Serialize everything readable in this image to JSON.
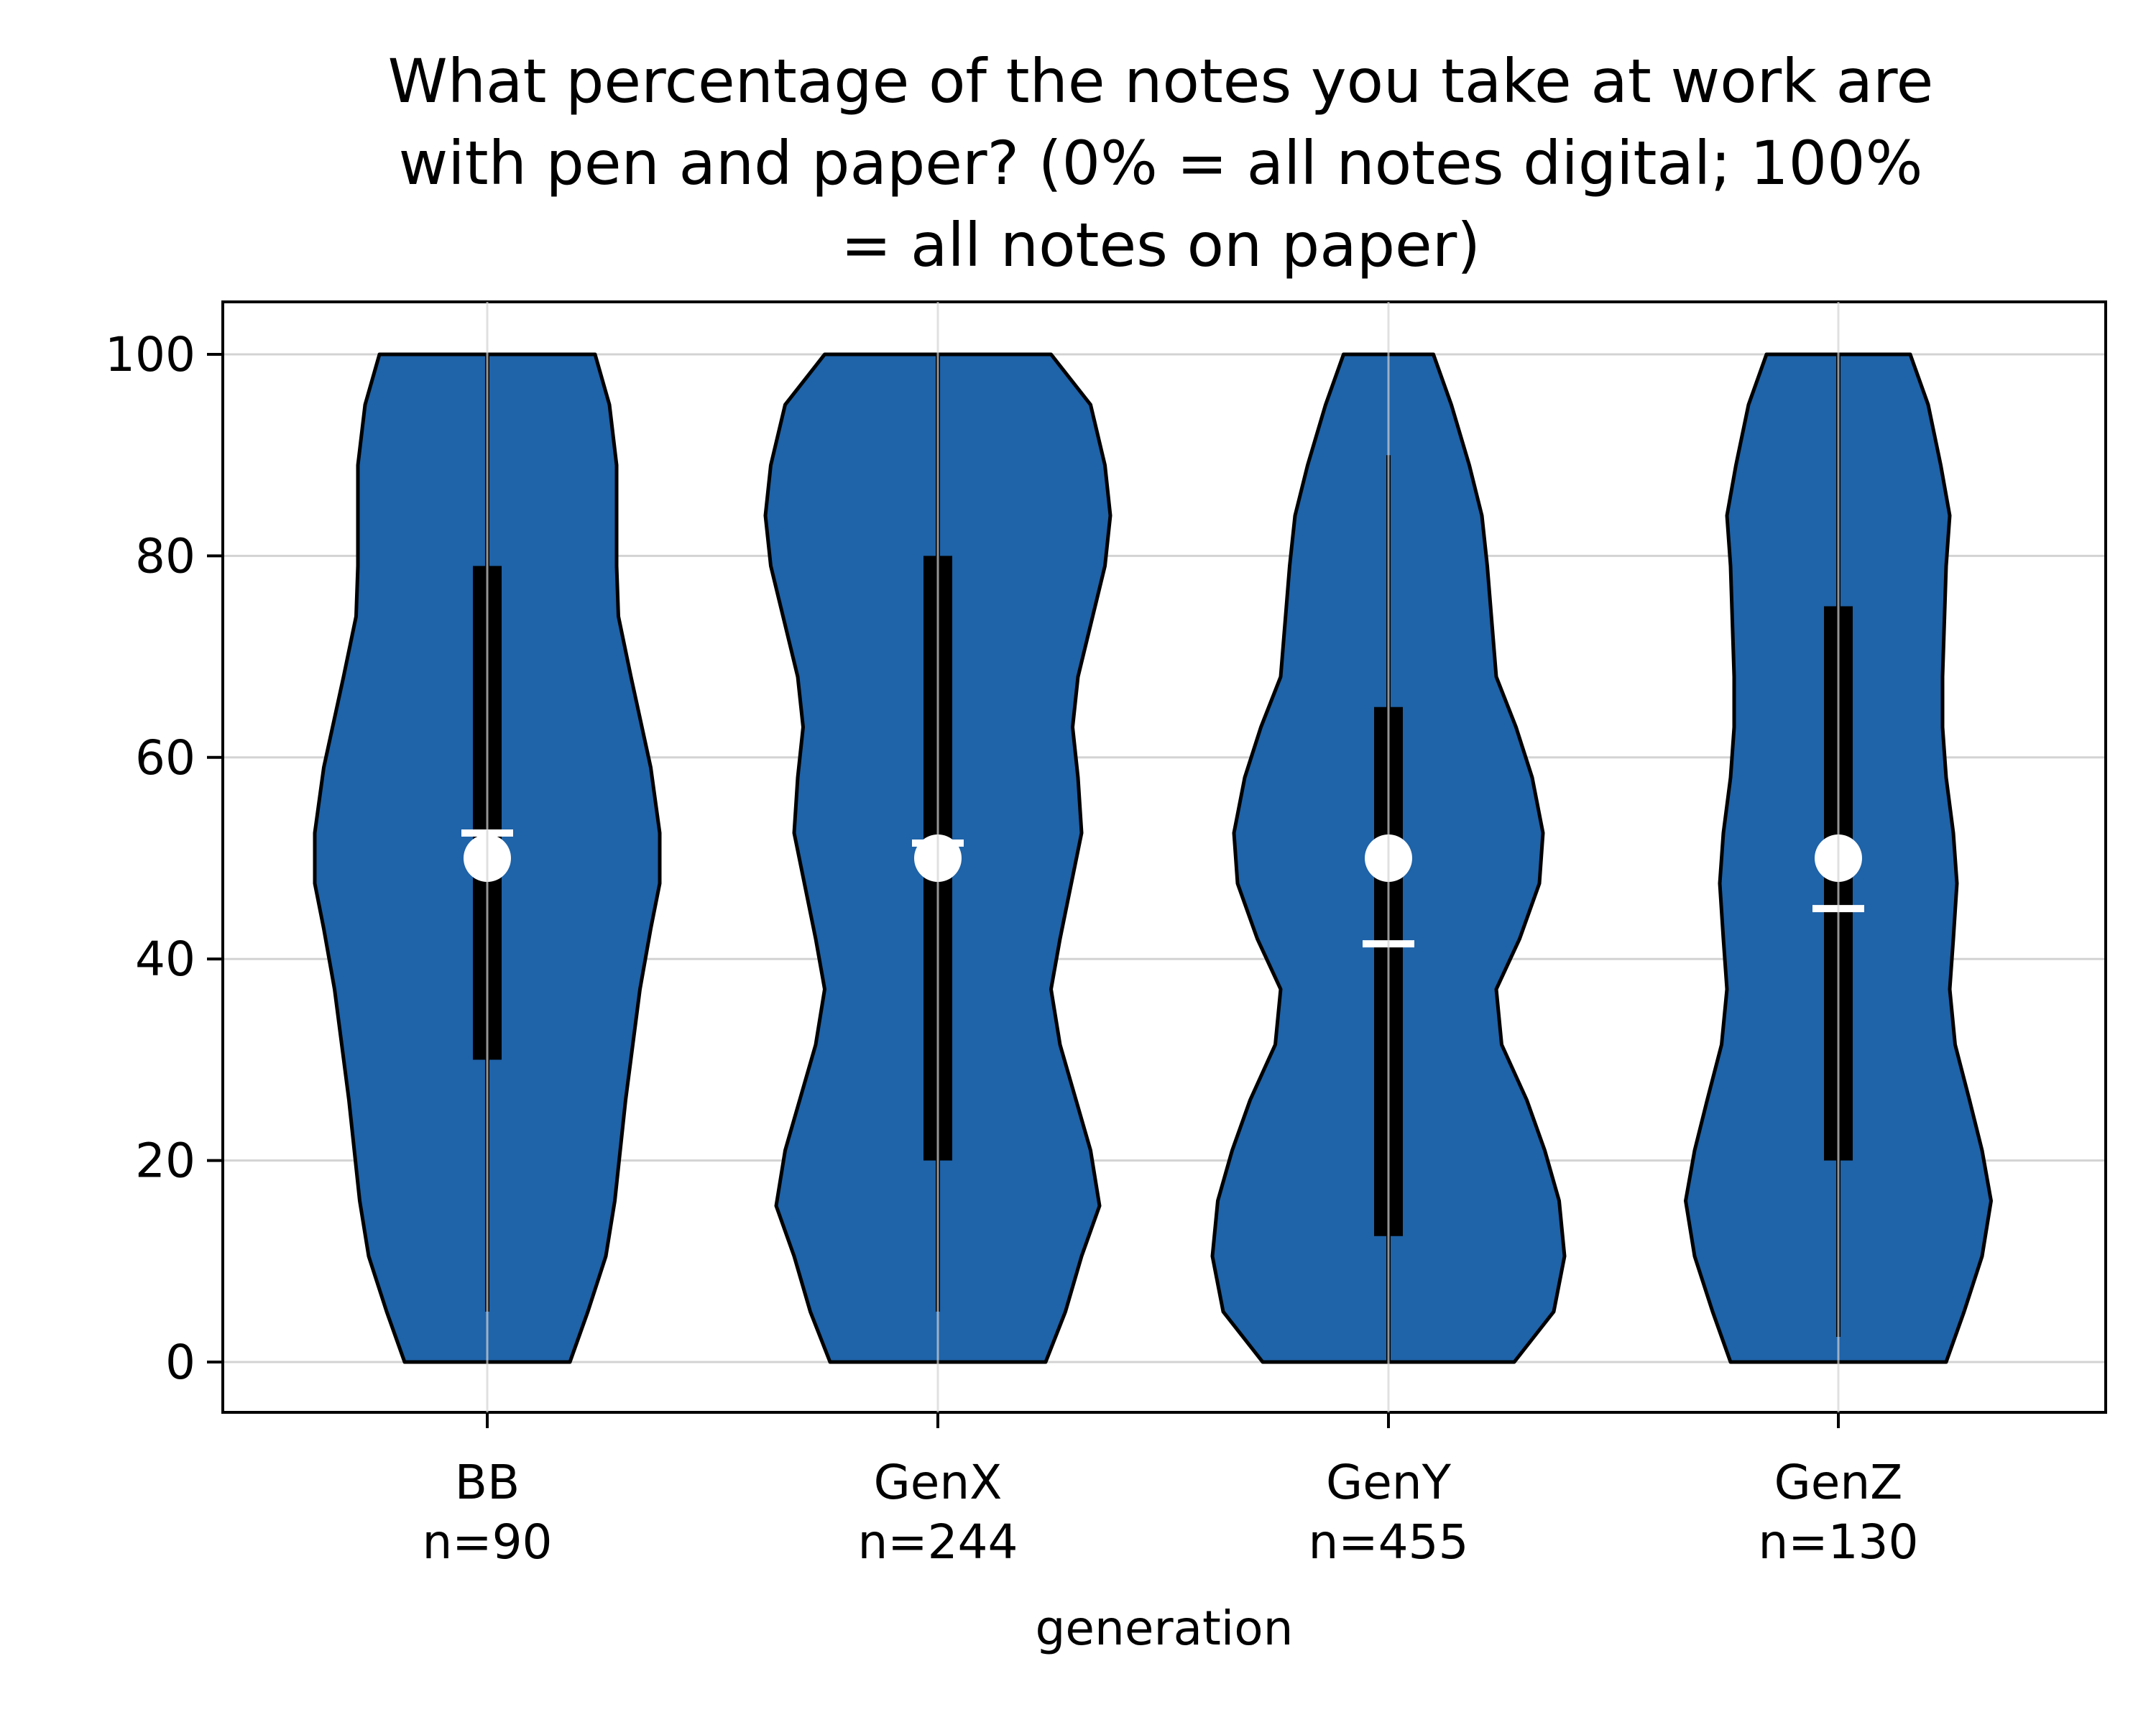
{
  "chart_data": {
    "type": "violin",
    "title_lines": [
      "What percentage of the notes you take at work are",
      "with pen and paper? (0% = all notes digital; 100%",
      "= all notes on paper)"
    ],
    "xlabel": "generation",
    "ylabel": "",
    "ylim": [
      -5,
      105
    ],
    "yticks": [
      0,
      20,
      40,
      60,
      80,
      100
    ],
    "grid": true,
    "colors": {
      "violin_fill": "#1f63a8",
      "outline": "#000000",
      "marker": "#ffffff",
      "grid": "#d3d3d3"
    },
    "categories": [
      {
        "name": "BB",
        "n_label": "n=90",
        "whisker": [
          5,
          100
        ],
        "q1": 30,
        "q3": 79,
        "median": 50,
        "mean": 52.5,
        "density": [
          [
            0,
            0.46
          ],
          [
            5,
            0.56
          ],
          [
            10.5,
            0.66
          ],
          [
            16,
            0.71
          ],
          [
            26,
            0.77
          ],
          [
            37,
            0.85
          ],
          [
            43,
            0.91
          ],
          [
            47.5,
            0.96
          ],
          [
            52.5,
            0.96
          ],
          [
            59,
            0.91
          ],
          [
            68,
            0.8
          ],
          [
            74,
            0.73
          ],
          [
            79,
            0.72
          ],
          [
            89,
            0.72
          ],
          [
            95,
            0.68
          ],
          [
            100,
            0.6
          ]
        ]
      },
      {
        "name": "GenX",
        "n_label": "n=244",
        "whisker": [
          5,
          100
        ],
        "q1": 20,
        "q3": 80,
        "median": 50,
        "mean": 51.5,
        "density": [
          [
            0,
            0.6
          ],
          [
            5,
            0.71
          ],
          [
            10.5,
            0.8
          ],
          [
            15.5,
            0.9
          ],
          [
            21,
            0.85
          ],
          [
            31.5,
            0.68
          ],
          [
            37,
            0.63
          ],
          [
            42,
            0.68
          ],
          [
            52.5,
            0.8
          ],
          [
            58,
            0.78
          ],
          [
            63,
            0.75
          ],
          [
            68,
            0.78
          ],
          [
            79,
            0.93
          ],
          [
            84,
            0.96
          ],
          [
            89,
            0.93
          ],
          [
            95,
            0.85
          ],
          [
            100,
            0.63
          ]
        ]
      },
      {
        "name": "GenY",
        "n_label": "n=455",
        "whisker": [
          0,
          90
        ],
        "q1": 12.5,
        "q3": 65,
        "median": 50,
        "mean": 41.5,
        "density": [
          [
            0,
            0.7
          ],
          [
            5,
            0.92
          ],
          [
            10.5,
            0.98
          ],
          [
            16,
            0.95
          ],
          [
            21,
            0.87
          ],
          [
            26,
            0.77
          ],
          [
            31.5,
            0.63
          ],
          [
            37,
            0.6
          ],
          [
            42,
            0.73
          ],
          [
            47.5,
            0.84
          ],
          [
            52.5,
            0.86
          ],
          [
            58,
            0.8
          ],
          [
            63,
            0.71
          ],
          [
            68,
            0.6
          ],
          [
            79,
            0.55
          ],
          [
            84,
            0.52
          ],
          [
            89,
            0.45
          ],
          [
            95,
            0.35
          ],
          [
            100,
            0.25
          ]
        ]
      },
      {
        "name": "GenZ",
        "n_label": "n=130",
        "whisker": [
          2.5,
          100
        ],
        "q1": 20,
        "q3": 75,
        "median": 50,
        "mean": 45,
        "density": [
          [
            0,
            0.6
          ],
          [
            5,
            0.7
          ],
          [
            10.5,
            0.8
          ],
          [
            16,
            0.85
          ],
          [
            21,
            0.8
          ],
          [
            26,
            0.73
          ],
          [
            31.5,
            0.65
          ],
          [
            37,
            0.62
          ],
          [
            42,
            0.64
          ],
          [
            47.5,
            0.66
          ],
          [
            52.5,
            0.64
          ],
          [
            58,
            0.6
          ],
          [
            63,
            0.58
          ],
          [
            68,
            0.58
          ],
          [
            79,
            0.6
          ],
          [
            84,
            0.62
          ],
          [
            89,
            0.57
          ],
          [
            95,
            0.5
          ],
          [
            100,
            0.4
          ]
        ]
      }
    ]
  }
}
